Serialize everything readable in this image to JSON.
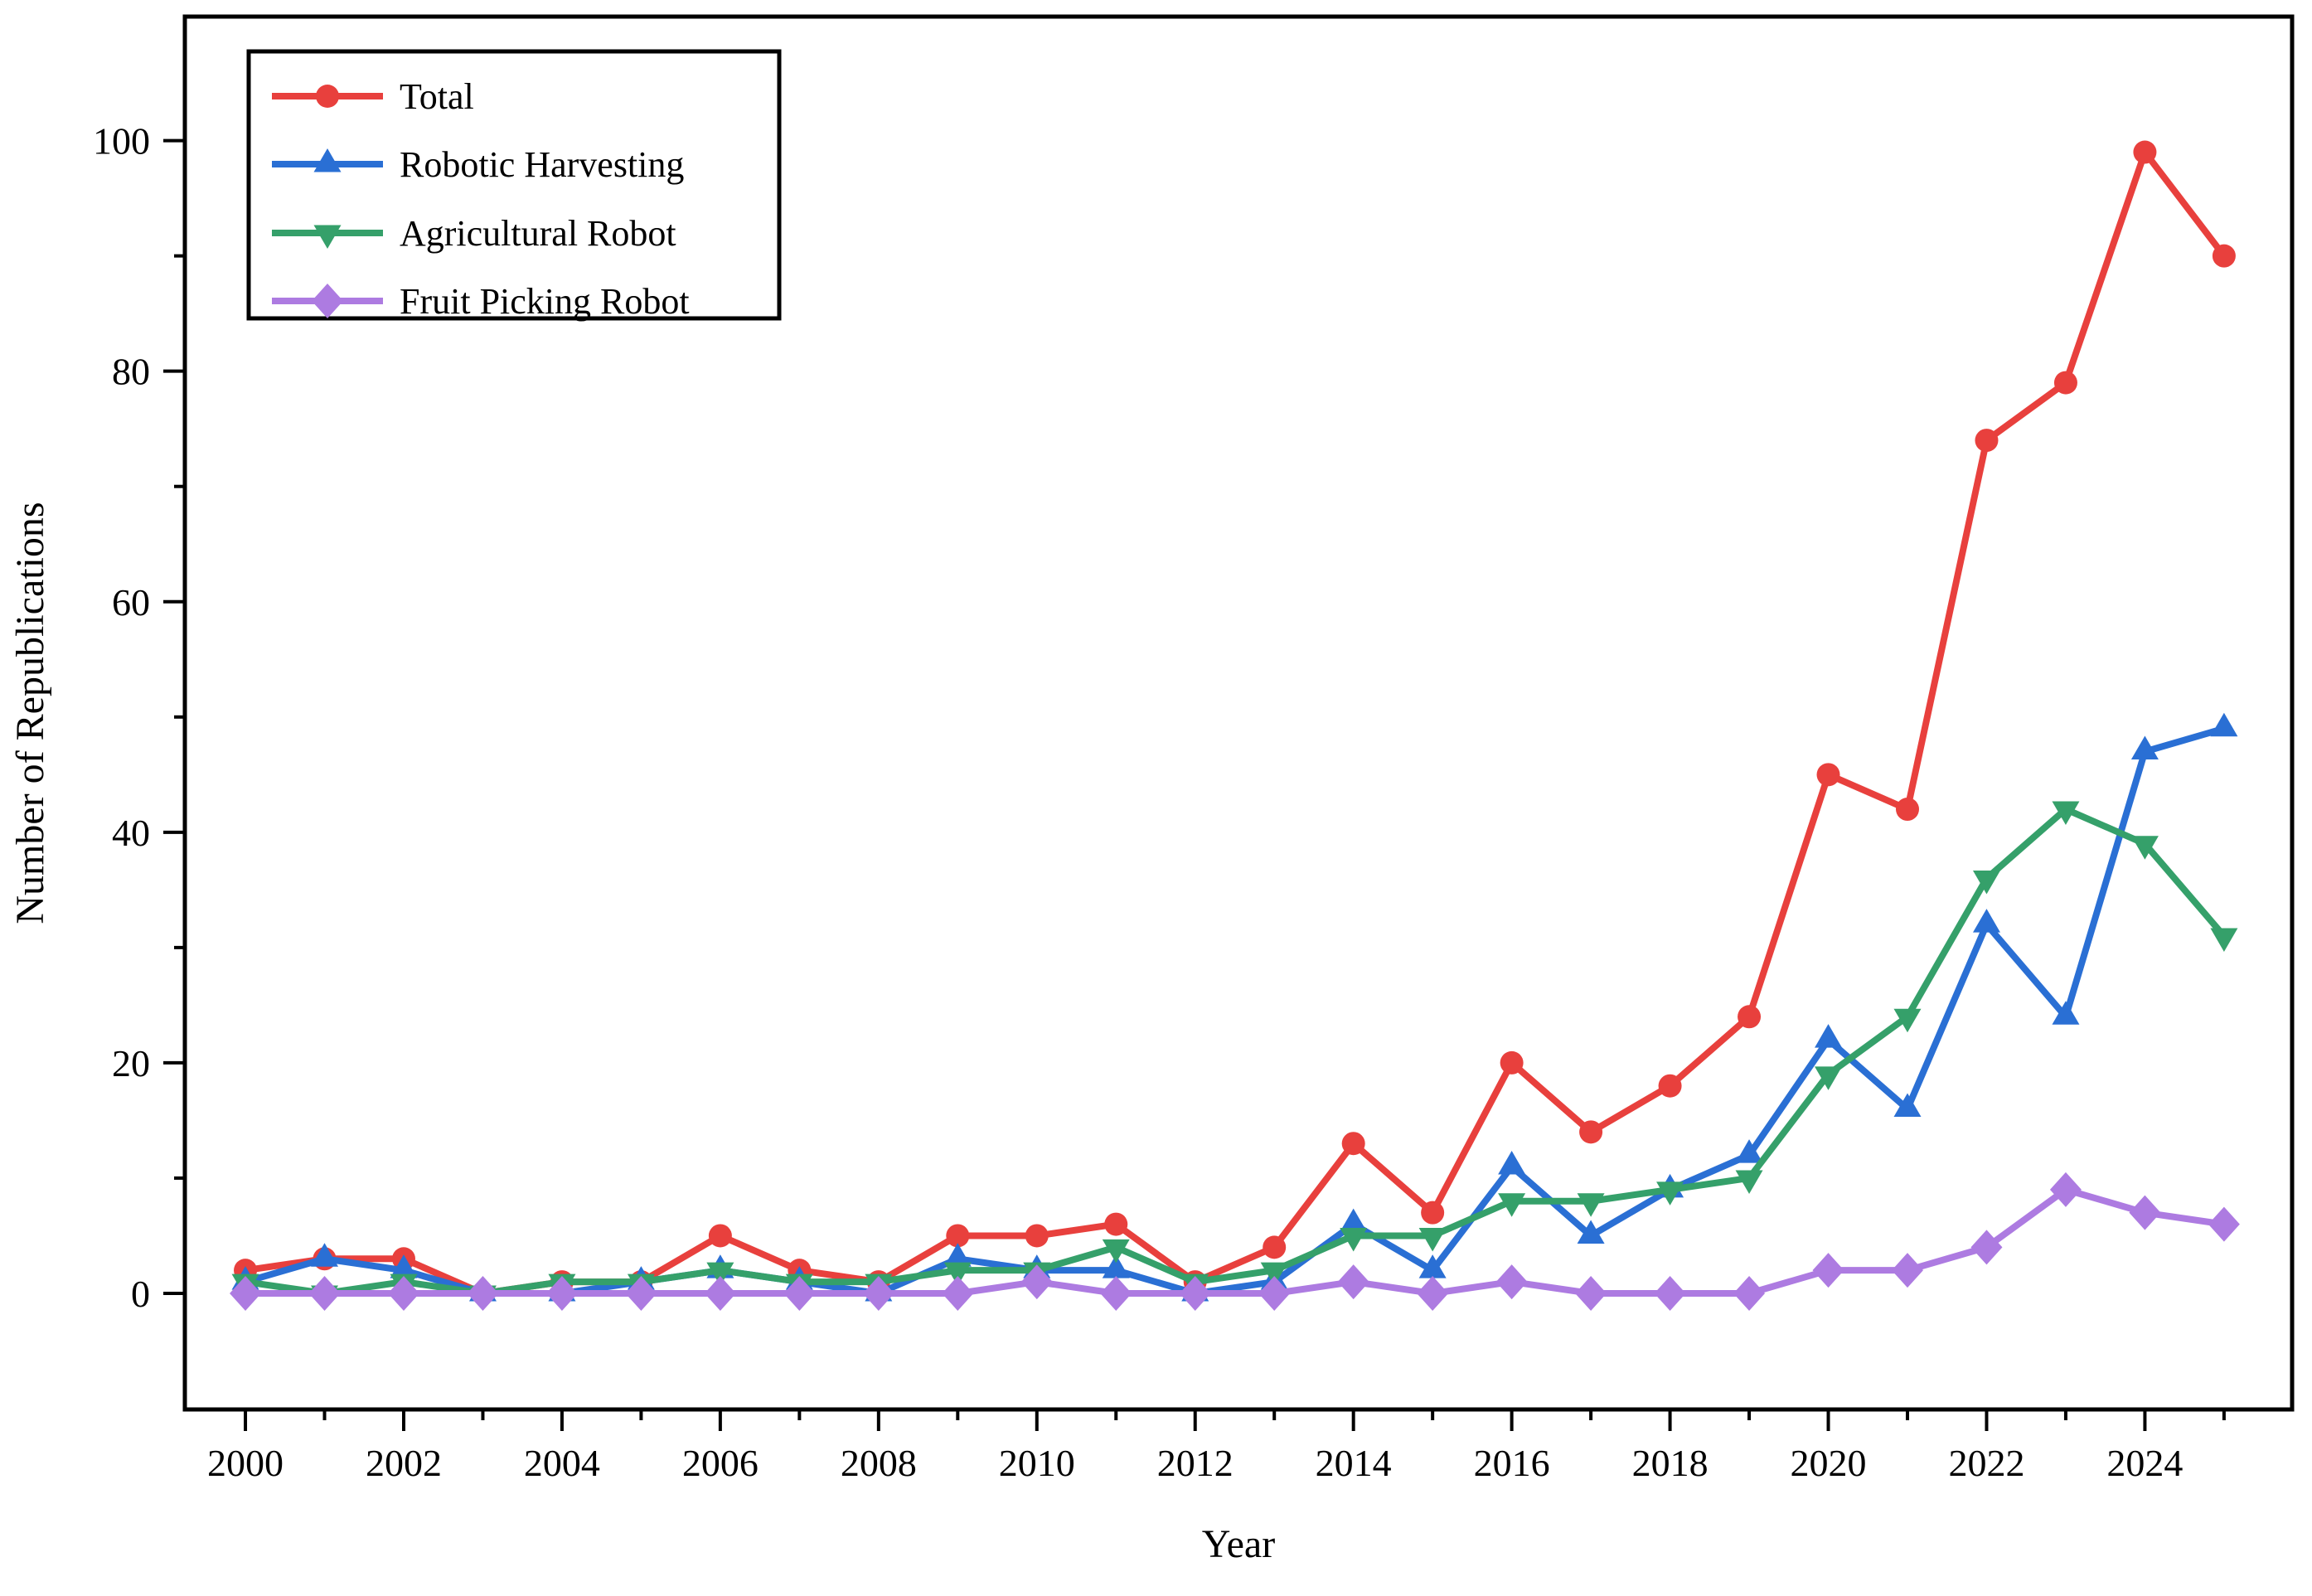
{
  "chart_data": {
    "type": "line",
    "title": "",
    "xlabel": "Year",
    "ylabel": "Number of Republications",
    "x": [
      2000,
      2001,
      2002,
      2003,
      2004,
      2005,
      2006,
      2007,
      2008,
      2009,
      2010,
      2011,
      2012,
      2013,
      2014,
      2015,
      2016,
      2017,
      2018,
      2019,
      2020,
      2021,
      2022,
      2023,
      2024,
      2025
    ],
    "series": [
      {
        "name": "Total",
        "color": "#e8403d",
        "marker": "circle",
        "values": [
          2,
          3,
          3,
          0,
          1,
          1,
          5,
          2,
          1,
          5,
          5,
          6,
          1,
          4,
          13,
          7,
          20,
          14,
          18,
          24,
          45,
          42,
          74,
          79,
          99,
          90
        ]
      },
      {
        "name": "Robotic Harvesting",
        "color": "#2a6fd4",
        "marker": "triangle-up",
        "values": [
          1,
          3,
          2,
          0,
          0,
          1,
          2,
          1,
          0,
          3,
          2,
          2,
          0,
          1,
          6,
          2,
          11,
          5,
          9,
          12,
          22,
          16,
          32,
          24,
          47,
          49
        ]
      },
      {
        "name": "Agricultural Robot",
        "color": "#35a06a",
        "marker": "triangle-down",
        "values": [
          1,
          0,
          1,
          0,
          1,
          1,
          2,
          1,
          1,
          2,
          2,
          4,
          1,
          2,
          5,
          5,
          8,
          8,
          9,
          10,
          19,
          24,
          36,
          42,
          39,
          31
        ]
      },
      {
        "name": "Fruit Picking Robot",
        "color": "#ad7be1",
        "marker": "diamond",
        "values": [
          0,
          0,
          0,
          0,
          0,
          0,
          0,
          0,
          0,
          0,
          1,
          0,
          0,
          0,
          1,
          0,
          1,
          0,
          0,
          0,
          2,
          2,
          4,
          9,
          7,
          6
        ]
      }
    ],
    "xlim": [
      1999.235,
      2025.86
    ],
    "ylim": [
      -10.07,
      110.76
    ],
    "x_major_ticks": [
      2000,
      2002,
      2004,
      2006,
      2008,
      2010,
      2012,
      2014,
      2016,
      2018,
      2020,
      2022,
      2024
    ],
    "x_minor_ticks": [
      2001,
      2003,
      2005,
      2007,
      2009,
      2011,
      2013,
      2015,
      2017,
      2019,
      2021,
      2023,
      2025
    ],
    "y_major_ticks": [
      0,
      20,
      40,
      60,
      80,
      100
    ],
    "y_minor_ticks": [
      10,
      30,
      50,
      70,
      90
    ],
    "grid": "off",
    "legend_position": "top-left",
    "frame_color": "#000000",
    "background_color": "#ffffff"
  }
}
